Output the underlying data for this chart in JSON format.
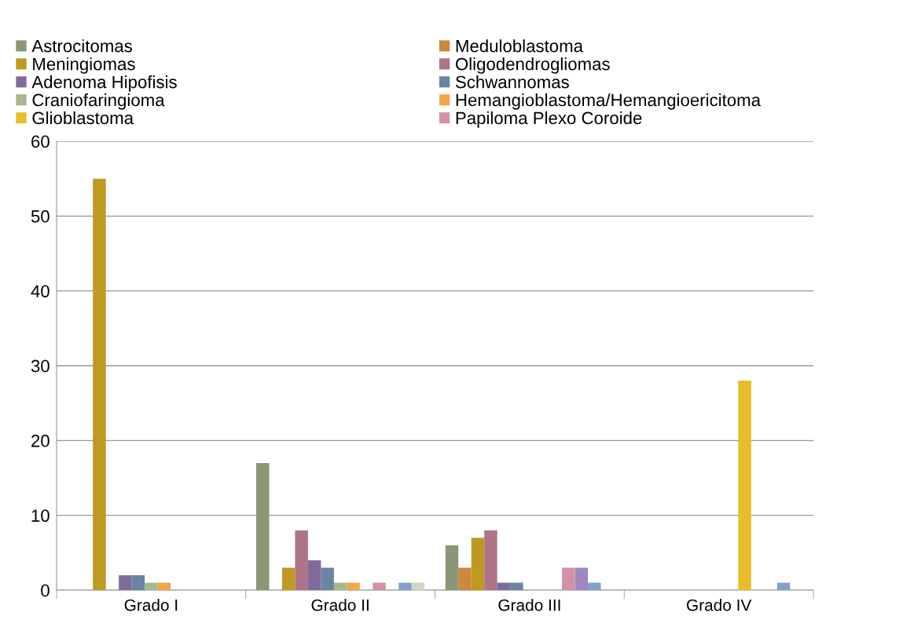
{
  "chart_data": {
    "type": "bar",
    "categories": [
      "Grado I",
      "Grado II",
      "Grado III",
      "Grado IV"
    ],
    "series": [
      {
        "name": "Astrocitomas",
        "color": "#8a9675",
        "values": [
          0,
          17,
          6,
          0
        ]
      },
      {
        "name": "Meduloblastoma",
        "color": "#cc883c",
        "values": [
          0,
          0,
          3,
          0
        ]
      },
      {
        "name": "Meningiomas",
        "color": "#bf9a22",
        "values": [
          55,
          3,
          7,
          0
        ]
      },
      {
        "name": "Oligodendrogliomas",
        "color": "#ad7486",
        "values": [
          0,
          8,
          8,
          0
        ]
      },
      {
        "name": "Adenoma Hipofisis",
        "color": "#806a9c",
        "values": [
          2,
          4,
          1,
          0
        ]
      },
      {
        "name": "Schwannomas",
        "color": "#6a84a2",
        "values": [
          2,
          3,
          1,
          0
        ]
      },
      {
        "name": "Craniofaringioma",
        "color": "#a7b68e",
        "values": [
          1,
          1,
          0,
          0
        ]
      },
      {
        "name": "Hemangioblastoma/Hemangioericitoma",
        "color": "#f4a44a",
        "values": [
          1,
          1,
          0,
          0
        ]
      },
      {
        "name": "Glioblastoma",
        "color": "#e8bc2a",
        "values": [
          0,
          0,
          0,
          28
        ]
      },
      {
        "name": "Papiloma Plexo Coroide",
        "color": "#d490a6",
        "values": [
          0,
          1,
          3,
          0
        ]
      },
      {
        "color": "#9e88c2",
        "values": [
          0,
          0,
          3,
          0
        ]
      },
      {
        "color": "#82a0c8",
        "values": [
          0,
          1,
          1,
          1
        ]
      },
      {
        "color": "#ced6c4",
        "values": [
          0,
          1,
          0,
          0
        ]
      }
    ],
    "ylim": [
      0,
      60
    ],
    "yticks": [
      0,
      10,
      20,
      30,
      40,
      50,
      60
    ],
    "grid": "y",
    "legend": "top"
  }
}
